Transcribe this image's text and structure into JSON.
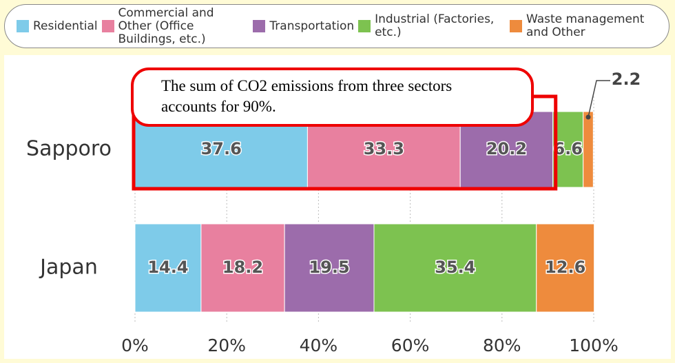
{
  "chart_data": {
    "type": "stacked_bar_horizontal",
    "annotation": "The sum of CO2 emissions from three sectors accounts for 90%.",
    "categories": [
      "Sapporo",
      "Japan"
    ],
    "series": [
      {
        "name": "Residential",
        "color": "#7ecbe9",
        "values": [
          37.6,
          14.4
        ]
      },
      {
        "name": "Commercial and Other (Office Buildings, etc.)",
        "color": "#e8809f",
        "values": [
          33.3,
          18.2
        ]
      },
      {
        "name": "Transportation",
        "color": "#9c6cab",
        "values": [
          20.2,
          19.5
        ]
      },
      {
        "name": "Industrial (Factories, etc.)",
        "color": "#7dc250",
        "values": [
          6.6,
          35.4
        ]
      },
      {
        "name": "Waste management and Other",
        "color": "#ee8b3d",
        "values": [
          2.2,
          12.6
        ]
      }
    ],
    "xlim": [
      0,
      100
    ],
    "xticks": [
      {
        "value": 0,
        "label": "0%"
      },
      {
        "value": 20,
        "label": "20%"
      },
      {
        "value": 40,
        "label": "40%"
      },
      {
        "value": 60,
        "label": "60%"
      },
      {
        "value": 80,
        "label": "80%"
      },
      {
        "value": 100,
        "label": "100%"
      }
    ],
    "grid": true
  }
}
